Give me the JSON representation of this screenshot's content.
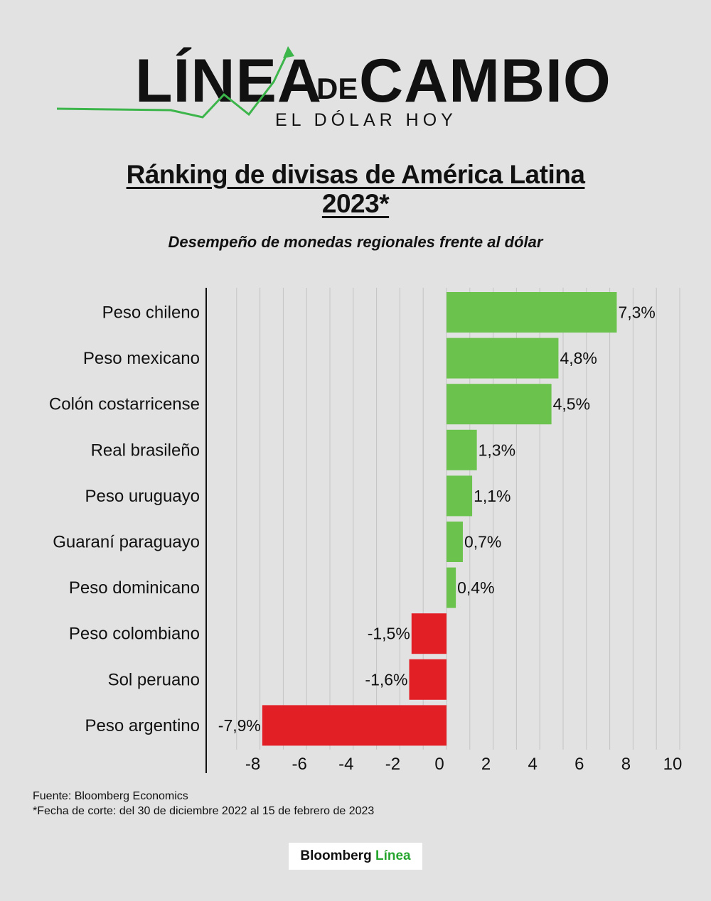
{
  "logo": {
    "word1": "LÍNEA",
    "word2": "DE",
    "word3": "CAMBIO",
    "tagline": "EL DÓLAR HOY"
  },
  "title": "Ránking de divisas de América Latina 2023*",
  "subtitle": "Desempeño de monedas regionales frente al dólar",
  "colors": {
    "positive": "#6bc34e",
    "negative": "#e31f26",
    "logo_accent": "#3cb54a",
    "grid": "#c4c4c4",
    "axis": "#111111"
  },
  "chart_data": {
    "type": "bar",
    "orientation": "horizontal",
    "categories": [
      "Peso chileno",
      "Peso mexicano",
      "Colón costarricense",
      "Real brasileño",
      "Peso uruguayo",
      "Guaraní paraguayo",
      "Peso dominicano",
      "Peso colombiano",
      "Sol peruano",
      "Peso argentino"
    ],
    "values": [
      7.3,
      4.8,
      4.5,
      1.3,
      1.1,
      0.7,
      0.4,
      -1.5,
      -1.6,
      -7.9
    ],
    "data_labels": [
      "7,3%",
      "4,8%",
      "4,5%",
      "1,3%",
      "1,1%",
      "0,7%",
      "0,4%",
      "-1,5%",
      "-1,6%",
      "-7,9%"
    ],
    "x_ticks": [
      -8,
      -6,
      -4,
      -2,
      0,
      2,
      4,
      6,
      8,
      10
    ],
    "x_tick_labels": [
      "-8",
      "-6",
      "-4",
      "-2",
      "0",
      "2",
      "4",
      "6",
      "8",
      "10"
    ],
    "xlim": [
      -10,
      10
    ],
    "grid": true
  },
  "source": "Fuente: Bloomberg Economics",
  "footnote": "*Fecha de corte: del 30 de diciembre 2022 al 15 de febrero de 2023",
  "footer_brand": {
    "part1": "Bloomberg",
    "part2": "Línea"
  }
}
